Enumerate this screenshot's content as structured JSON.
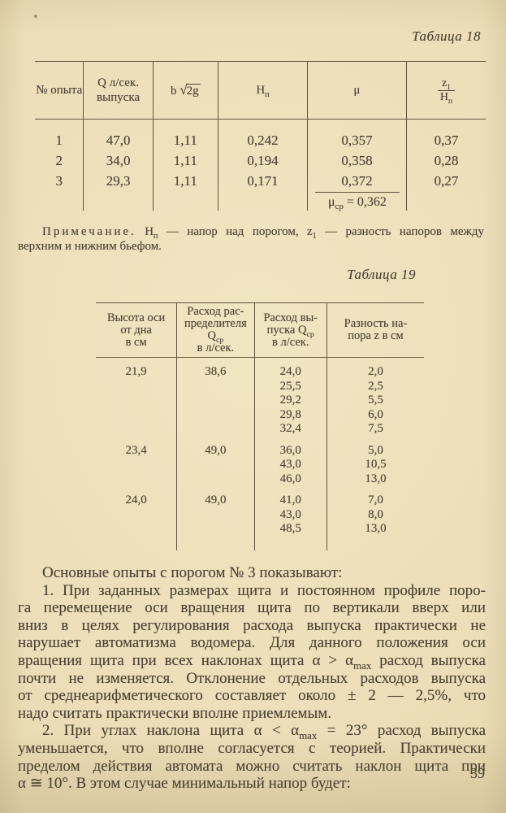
{
  "page": {
    "background": "#eaddb6",
    "ink": "#4a4133",
    "rule_color": "#4e402a",
    "number": "39"
  },
  "table18": {
    "caption": "Таблица 18",
    "headers": {
      "col1": "№ опыта",
      "col2_line1": "Q л/сек.",
      "col2_line2": "выпуска",
      "col3_prefix": "b ",
      "col3_sqrt": "√",
      "col3_radicand": "2g",
      "col4_base": "H",
      "col4_sub": "п",
      "col5": "μ",
      "col6_num_base": "z",
      "col6_num_sub": "1",
      "col6_den_base": "H",
      "col6_den_sub": "п"
    },
    "rows": [
      [
        "1",
        "47,0",
        "1,11",
        "0,242",
        "0,357",
        "0,37"
      ],
      [
        "2",
        "34,0",
        "1,11",
        "0,194",
        "0,358",
        "0,28"
      ],
      [
        "3",
        "29,3",
        "1,11",
        "0,171",
        "0,372",
        "0,27"
      ]
    ],
    "mu_avg": {
      "base": "μ",
      "sub": "ср",
      "rest": " = 0,362"
    }
  },
  "note": {
    "lines": [
      {
        "indent": true,
        "segs": [
          {
            "t": "Примечание.",
            "spaced": true
          },
          {
            "t": " H"
          },
          {
            "t": "п",
            "sub": true
          },
          {
            "t": " — напор над порогом, z"
          },
          {
            "t": "1",
            "sub": true
          },
          {
            "t": " — разность напоров между"
          }
        ]
      },
      {
        "last": true,
        "segs": [
          {
            "t": "верхним и нижним бьефом."
          }
        ]
      }
    ]
  },
  "table19": {
    "caption": "Таблица 19",
    "headers": [
      {
        "lines": [
          {
            "segs": [
              {
                "t": "Высота оси"
              }
            ]
          },
          {
            "segs": [
              {
                "t": "от дна"
              }
            ]
          },
          {
            "segs": [
              {
                "t": "в см"
              }
            ]
          }
        ]
      },
      {
        "lines": [
          {
            "segs": [
              {
                "t": "Расход рас-"
              }
            ]
          },
          {
            "segs": [
              {
                "t": "пределителя"
              }
            ]
          },
          {
            "segs": [
              {
                "t": "Q"
              },
              {
                "t": "ср",
                "sub": true
              }
            ]
          },
          {
            "segs": [
              {
                "t": "в л/сек."
              }
            ]
          }
        ]
      },
      {
        "lines": [
          {
            "segs": [
              {
                "t": "Расход вы-"
              }
            ]
          },
          {
            "segs": [
              {
                "t": "пуска Q"
              },
              {
                "t": "ср",
                "sub": true
              }
            ]
          },
          {
            "segs": [
              {
                "t": "в л/сек."
              }
            ]
          }
        ]
      },
      {
        "lines": [
          {
            "segs": [
              {
                "t": "Разность на-"
              }
            ]
          },
          {
            "segs": [
              {
                "t": "пора z в см"
              }
            ]
          }
        ]
      }
    ],
    "groups": [
      {
        "height": "21,9",
        "distributor": "38,6",
        "rows": [
          [
            "24,0",
            "2,0"
          ],
          [
            "25,5",
            "2,5"
          ],
          [
            "29,2",
            "5,5"
          ],
          [
            "29,8",
            "6,0"
          ],
          [
            "32,4",
            "7,5"
          ]
        ]
      },
      {
        "height": "23,4",
        "distributor": "49,0",
        "rows": [
          [
            "36,0",
            "5,0"
          ],
          [
            "43,0",
            "10,5"
          ],
          [
            "46,0",
            "13,0"
          ]
        ]
      },
      {
        "height": "24,0",
        "distributor": "49,0",
        "rows": [
          [
            "41,0",
            "7,0"
          ],
          [
            "43,0",
            "8,0"
          ],
          [
            "48,5",
            "13,0"
          ]
        ]
      }
    ]
  },
  "body": {
    "lines": [
      {
        "indent": true,
        "last": true,
        "segs": [
          {
            "t": "Основные опыты с порогом № 3 показывают:"
          }
        ]
      },
      {
        "indent": true,
        "segs": [
          {
            "t": "1. При заданных размерах щита и постоянном профиле поро-"
          }
        ]
      },
      {
        "segs": [
          {
            "t": "га перемещение оси вращения щита по вертикали вверх или"
          }
        ]
      },
      {
        "segs": [
          {
            "t": "вниз в целях регулирования расхода выпуска практически не"
          }
        ]
      },
      {
        "segs": [
          {
            "t": "нарушает автоматизма водомера. Для данного положения оси"
          }
        ]
      },
      {
        "segs": [
          {
            "t": "вращения щита при всех наклонах щита α > α"
          },
          {
            "t": "max",
            "sub": true
          },
          {
            "t": " расход выпуска"
          }
        ]
      },
      {
        "segs": [
          {
            "t": "почти не изменяется. Отклонение отдельных расходов выпуска"
          }
        ]
      },
      {
        "segs": [
          {
            "t": "от среднеарифметического составляет около ± 2 — 2,5%, что"
          }
        ]
      },
      {
        "last": true,
        "segs": [
          {
            "t": "надо считать практически вполне приемлемым."
          }
        ]
      },
      {
        "indent": true,
        "segs": [
          {
            "t": "2. При углах наклона щита α < α"
          },
          {
            "t": "max",
            "sub": true
          },
          {
            "t": " = 23° расход выпуска"
          }
        ]
      },
      {
        "segs": [
          {
            "t": "уменьшается, что вполне согласуется с теорией. Практически"
          }
        ]
      },
      {
        "segs": [
          {
            "t": "пределом действия автомата можно считать наклон щита при"
          }
        ]
      },
      {
        "last": true,
        "segs": [
          {
            "t": "α ≅ 10°. В этом случае минимальный напор будет:"
          }
        ]
      }
    ]
  }
}
